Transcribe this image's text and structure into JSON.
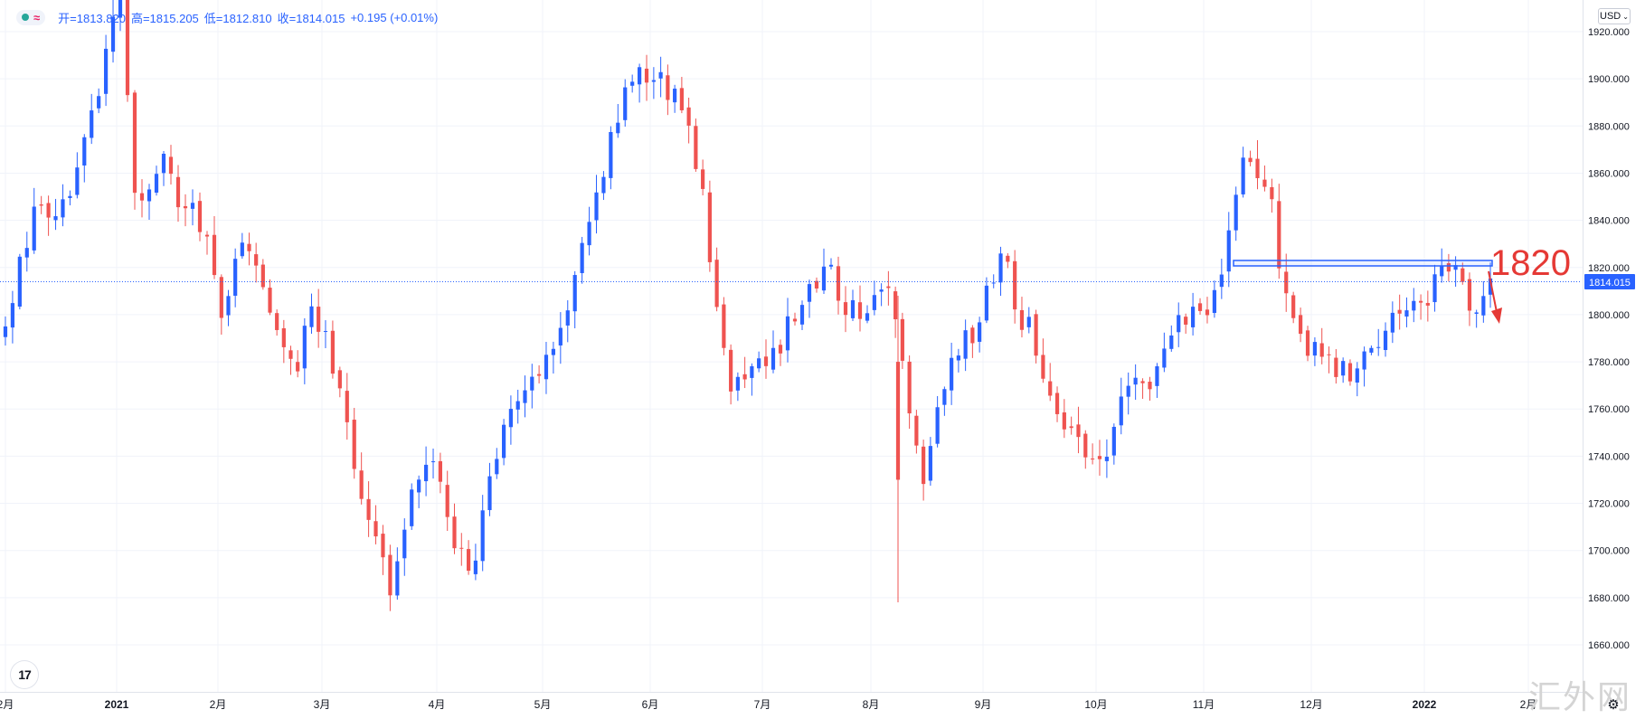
{
  "legend": {
    "open_label": "开=1813.820",
    "high_label": "高=1815.205",
    "low_label": "低=1812.810",
    "close_label": "收=1814.015",
    "change_label": "+0.195 (+0.01%)"
  },
  "currency": {
    "label": "USD",
    "icon": "chevron-down-icon"
  },
  "logo": {
    "text": "17"
  },
  "watermark": {
    "text": "汇外网"
  },
  "settings": {
    "icon": "gear-icon"
  },
  "colors": {
    "up": "#2962ff",
    "down": "#ef5350",
    "annotation": "#e53935",
    "grid": "#f0f3fa",
    "price_label_bg": "#2962ff"
  },
  "chart_data": {
    "type": "candlestick",
    "title": "",
    "xlabel": "",
    "ylabel": "",
    "ylim": [
      1645,
      1932
    ],
    "y_ticks": [
      "1920.000",
      "1900.000",
      "1880.000",
      "1860.000",
      "1840.000",
      "1820.000",
      "1800.000",
      "1780.000",
      "1760.000",
      "1740.000",
      "1720.000",
      "1700.000",
      "1680.000",
      "1660.000"
    ],
    "x_ticks": [
      "2月",
      "2021",
      "2月",
      "3月",
      "4月",
      "5月",
      "6月",
      "7月",
      "8月",
      "9月",
      "10月",
      "11月",
      "12月",
      "2022",
      "2月"
    ],
    "grid": true,
    "last_price": 1814.015,
    "last_price_label": "1814.015",
    "annotation": {
      "text": "1820",
      "level": 1820,
      "direction": "down"
    },
    "series": [
      {
        "period": "2020-12",
        "anchors": [
          1790,
          1828,
          1845,
          1836,
          1856,
          1878,
          1905,
          1950
        ]
      },
      {
        "period": "2021-01",
        "anchors": [
          1945,
          1850,
          1858,
          1868,
          1850,
          1846,
          1832,
          1800
        ]
      },
      {
        "period": "2021-02",
        "anchors": [
          1800,
          1822,
          1830,
          1810,
          1790,
          1775,
          1805,
          1790
        ]
      },
      {
        "period": "2021-03",
        "anchors": [
          1790,
          1760,
          1728,
          1705,
          1682,
          1720,
          1740,
          1732
        ]
      },
      {
        "period": "2021-04",
        "anchors": [
          1732,
          1700,
          1688,
          1720,
          1745,
          1760,
          1775,
          1780
        ]
      },
      {
        "period": "2021-05",
        "anchors": [
          1780,
          1790,
          1825,
          1845,
          1870,
          1890,
          1900,
          1905
        ]
      },
      {
        "period": "2021-06",
        "anchors": [
          1905,
          1895,
          1880,
          1860,
          1795,
          1768,
          1778,
          1775
        ]
      },
      {
        "period": "2021-07",
        "anchors": [
          1775,
          1790,
          1805,
          1812,
          1820,
          1805,
          1800,
          1812
        ]
      },
      {
        "period": "2021-08",
        "anchors": [
          1812,
          1805,
          1765,
          1730,
          1760,
          1785,
          1790,
          1810
        ]
      },
      {
        "period": "2021-09",
        "anchors": [
          1810,
          1825,
          1800,
          1790,
          1765,
          1752,
          1745,
          1735
        ]
      },
      {
        "period": "2021-10",
        "anchors": [
          1735,
          1755,
          1770,
          1765,
          1780,
          1795,
          1800,
          1800
        ]
      },
      {
        "period": "2021-11",
        "anchors": [
          1800,
          1820,
          1860,
          1865,
          1855,
          1810,
          1790,
          1785
        ]
      },
      {
        "period": "2021-12",
        "anchors": [
          1785,
          1778,
          1775,
          1780,
          1790,
          1800,
          1808,
          1805
        ]
      },
      {
        "period": "2022-01",
        "anchors": [
          1805,
          1825,
          1812,
          1795,
          1815,
          1825,
          1820,
          1814
        ]
      }
    ]
  }
}
